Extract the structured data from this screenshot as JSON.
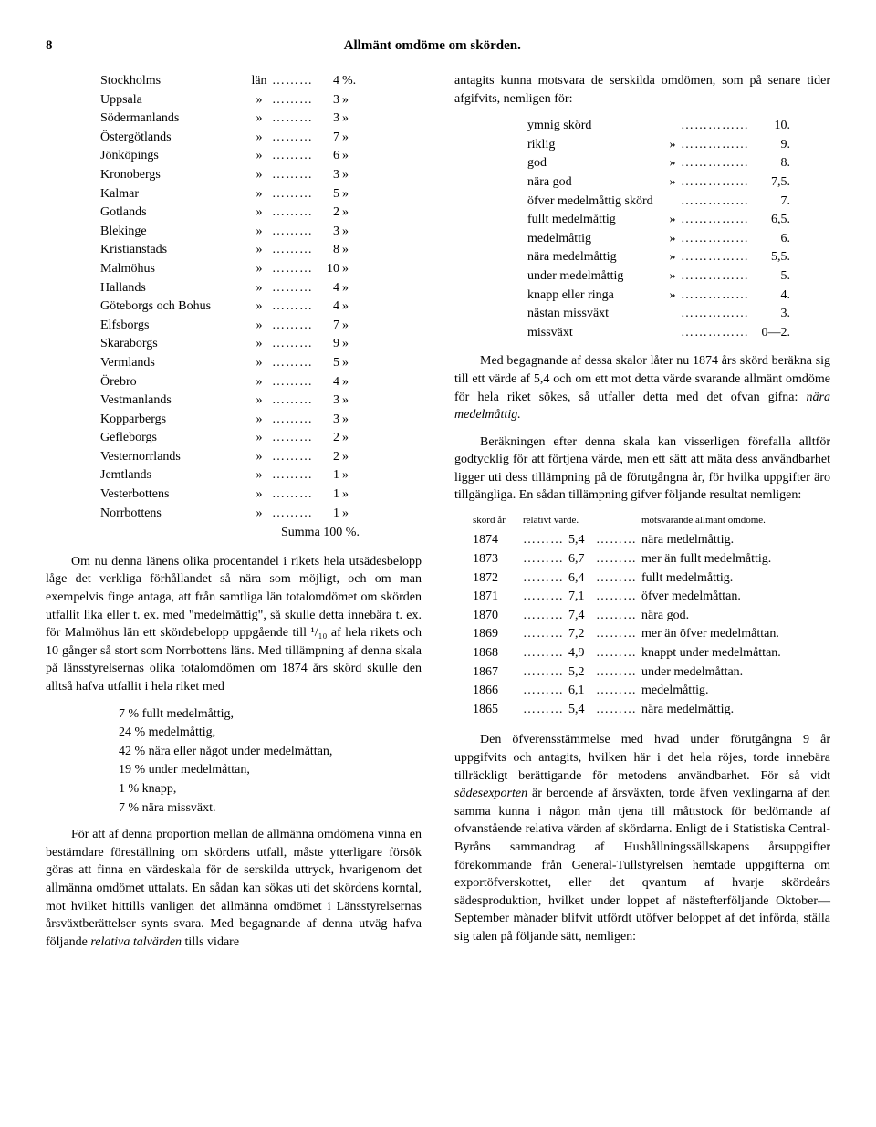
{
  "page_number": "8",
  "page_title": "Allmänt omdöme om skörden.",
  "lan_table": {
    "word_first": "län",
    "word_rest": "»",
    "unit_first": "%.",
    "unit_rest": "»",
    "rows": [
      {
        "name": "Stockholms",
        "val": "4"
      },
      {
        "name": "Uppsala",
        "val": "3"
      },
      {
        "name": "Södermanlands",
        "val": "3"
      },
      {
        "name": "Östergötlands",
        "val": "7"
      },
      {
        "name": "Jönköpings",
        "val": "6"
      },
      {
        "name": "Kronobergs",
        "val": "3"
      },
      {
        "name": "Kalmar",
        "val": "5"
      },
      {
        "name": "Gotlands",
        "val": "2"
      },
      {
        "name": "Blekinge",
        "val": "3"
      },
      {
        "name": "Kristianstads",
        "val": "8"
      },
      {
        "name": "Malmöhus",
        "val": "10"
      },
      {
        "name": "Hallands",
        "val": "4"
      },
      {
        "name": "Göteborgs och Bohus",
        "val": "4"
      },
      {
        "name": "Elfsborgs",
        "val": "7"
      },
      {
        "name": "Skaraborgs",
        "val": "9"
      },
      {
        "name": "Vermlands",
        "val": "5"
      },
      {
        "name": "Örebro",
        "val": "4"
      },
      {
        "name": "Vestmanlands",
        "val": "3"
      },
      {
        "name": "Kopparbergs",
        "val": "3"
      },
      {
        "name": "Gefleborgs",
        "val": "2"
      },
      {
        "name": "Vesternorrlands",
        "val": "2"
      },
      {
        "name": "Jemtlands",
        "val": "1"
      },
      {
        "name": "Vesterbottens",
        "val": "1"
      },
      {
        "name": "Norrbottens",
        "val": "1"
      }
    ],
    "summa": "Summa 100 %."
  },
  "para1": "Om nu denna länens olika procentandel i rikets hela utsädesbelopp låge det verkliga förhållandet så nära som möjligt, och om man exempelvis finge antaga, att från samtliga län totalomdömet om skörden utfallit lika eller t. ex. med \"medelmåttig\", så skulle detta innebära t. ex. för Malmöhus län ett skördebelopp uppgående till ¹/₁₀ af hela rikets och 10 gånger så stort som Norrbottens läns. Med tillämpning af denna skala på länsstyrelsernas olika totalomdömen om 1874 års skörd skulle den alltså hafva utfallit i hela riket med",
  "pct_list": [
    "7 % fullt medelmåttig,",
    "24 % medelmåttig,",
    "42 % nära eller något under medelmåttan,",
    "19 % under medelmåttan,",
    "1 % knapp,",
    "7 % nära missväxt."
  ],
  "para2a": "För att af denna proportion mellan de allmänna omdömena vinna en bestämdare föreställning om skördens utfall, måste ytterligare försök göras att finna en värdeskala för de serskilda uttryck, hvarigenom det allmänna omdömet uttalats. En sådan kan sökas uti det skördens korntal, mot hvilket hittills vanligen det allmänna omdömet i Länsstyrelsernas årsväxtberättelser synts svara. Med begagnande af denna utväg hafva följande ",
  "para2b": "relativa talvärden",
  "para2c": " tills vidare",
  "para_r1": "antagits kunna motsvara de serskilda omdömen, som på senare tider afgifvits, nemligen för:",
  "scale_rows": [
    {
      "label": "ymnig skörd",
      "q": "",
      "val": "10."
    },
    {
      "label": "riklig",
      "q": "»",
      "val": "9."
    },
    {
      "label": "god",
      "q": "»",
      "val": "8."
    },
    {
      "label": "nära god",
      "q": "»",
      "val": "7,5."
    },
    {
      "label": "öfver medelmåttig skörd",
      "q": "",
      "val": "7."
    },
    {
      "label": "fullt medelmåttig",
      "q": "»",
      "val": "6,5."
    },
    {
      "label": "medelmåttig",
      "q": "»",
      "val": "6."
    },
    {
      "label": "nära medelmåttig",
      "q": "»",
      "val": "5,5."
    },
    {
      "label": "under medelmåttig",
      "q": "»",
      "val": "5."
    },
    {
      "label": "knapp eller ringa",
      "q": "»",
      "val": "4."
    },
    {
      "label": "nästan missväxt",
      "q": "",
      "val": "3."
    },
    {
      "label": "missväxt",
      "q": "",
      "val": "0—2."
    }
  ],
  "para_r2a": "Med begagnande af dessa skalor låter nu 1874 års skörd beräkna sig till ett värde af 5,4 och om ett mot detta värde svarande allmänt omdöme för hela riket sökes, så utfaller detta med det ofvan gifna: ",
  "para_r2b": "nära medelmåttig.",
  "para_r3": "Beräkningen efter denna skala kan visserligen förefalla alltför godtycklig för att förtjena värde, men ett sätt att mäta dess användbarhet ligger uti dess tillämpning på de förutgångna år, för hvilka uppgifter äro tillgängliga. En sådan tillämpning gifver följande resultat nemligen:",
  "year_header": {
    "h1": "skörd år",
    "h2": "relativt värde.",
    "h3": "motsvarande allmänt omdöme."
  },
  "year_rows": [
    {
      "y": "1874",
      "v": "5,4",
      "d": "nära medelmåttig."
    },
    {
      "y": "1873",
      "v": "6,7",
      "d": "mer än fullt medelmåttig."
    },
    {
      "y": "1872",
      "v": "6,4",
      "d": "fullt medelmåttig."
    },
    {
      "y": "1871",
      "v": "7,1",
      "d": "öfver medelmåttan."
    },
    {
      "y": "1870",
      "v": "7,4",
      "d": "nära god."
    },
    {
      "y": "1869",
      "v": "7,2",
      "d": "mer än öfver medelmåttan."
    },
    {
      "y": "1868",
      "v": "4,9",
      "d": "knappt under medelmåttan."
    },
    {
      "y": "1867",
      "v": "5,2",
      "d": "under medelmåttan."
    },
    {
      "y": "1866",
      "v": "6,1",
      "d": "medelmåttig."
    },
    {
      "y": "1865",
      "v": "5,4",
      "d": "nära medelmåttig."
    }
  ],
  "para_r4a": "Den öfverensstämmelse med hvad under förutgångna 9 år uppgifvits och antagits, hvilken här i det hela röjes, torde innebära tillräckligt berättigande för metodens användbarhet. För så vidt ",
  "para_r4b": "sädesexporten",
  "para_r4c": " är beroende af årsväxten, torde äfven vexlingarna af den samma kunna i någon mån tjena till måttstock för bedömande af ofvanstående relativa värden af skördarna. Enligt de i Statistiska Central-Byråns sammandrag af Hushållningssällskapens årsuppgifter förekommande från General-Tullstyrelsen hemtade uppgifterna om exportöfverskottet, eller det qvantum af hvarje skördeårs sädesproduktion, hvilket under loppet af nästefterföljande Oktober—September månader blifvit utfördt utöfver beloppet af det införda, ställa sig talen på följande sätt, nemligen:"
}
